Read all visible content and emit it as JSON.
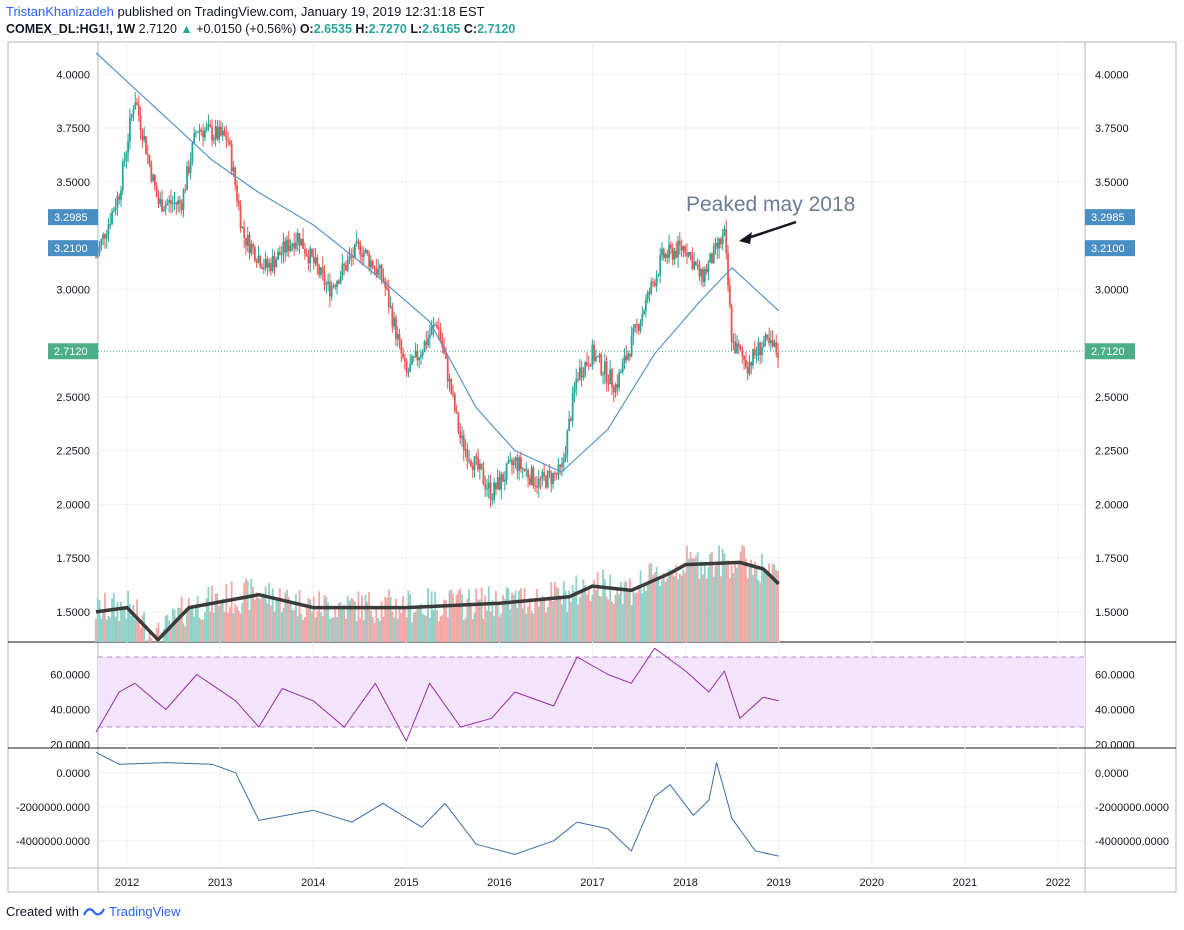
{
  "header": {
    "username": "TristanKhanizadeh",
    "published_text": "published on TradingView.com, January 19, 2019 12:31:18 EST",
    "symbol": "COMEX_DL:HG1!, 1W",
    "last_price": "2.7120",
    "change": "+0.0150 (+0.56%)",
    "open_label": "O:",
    "open": "2.6535",
    "high_label": "H:",
    "high": "2.7270",
    "low_label": "L:",
    "low": "2.6165",
    "close_label": "C:",
    "close": "2.7120"
  },
  "footer": {
    "created_with": "Created with",
    "brand": "TradingView"
  },
  "annotation": {
    "text": "Peaked may 2018"
  },
  "colors": {
    "up": "#26a69a",
    "down": "#ef5350",
    "ma": "#4a8fc4",
    "vol_up": "#8fd0c8",
    "vol_down": "#f4a7a4",
    "vol_ma": "#3b3b3b",
    "rsi": "#9c27b0",
    "rsi_band": "#f3e5fb",
    "flow": "#3a6ea8",
    "price_badge": "#4caf89",
    "level_badge": "#4a8fc4"
  },
  "chart_data": [
    {
      "type": "candlestick",
      "panel": "price",
      "series_label": "COMEX_DL:HG1!, 1W",
      "ylim": [
        1.36,
        4.15
      ],
      "y_ticks": [
        "4.0000",
        "3.7500",
        "3.5000",
        "3.0000",
        "2.5000",
        "2.2500",
        "2.0000",
        "1.7500",
        "1.5000"
      ],
      "x_ticks": [
        "2012",
        "2013",
        "2014",
        "2015",
        "2016",
        "2017",
        "2018",
        "2019",
        "2020",
        "2021",
        "2022"
      ],
      "price_markers": [
        "3.2985",
        "3.2100",
        "2.7120"
      ],
      "approx_weekly_close_path": [
        [
          "2011-09",
          3.15
        ],
        [
          "2011-12",
          3.45
        ],
        [
          "2012-02",
          3.9
        ],
        [
          "2012-05",
          3.4
        ],
        [
          "2012-08",
          3.4
        ],
        [
          "2012-10",
          3.75
        ],
        [
          "2013-02",
          3.7
        ],
        [
          "2013-04",
          3.25
        ],
        [
          "2013-07",
          3.1
        ],
        [
          "2013-11",
          3.25
        ],
        [
          "2014-03",
          3.0
        ],
        [
          "2014-07",
          3.2
        ],
        [
          "2014-10",
          3.05
        ],
        [
          "2015-01",
          2.6
        ],
        [
          "2015-05",
          2.85
        ],
        [
          "2015-08",
          2.3
        ],
        [
          "2015-12",
          2.05
        ],
        [
          "2016-03",
          2.2
        ],
        [
          "2016-06",
          2.1
        ],
        [
          "2016-09",
          2.15
        ],
        [
          "2016-11",
          2.6
        ],
        [
          "2017-01",
          2.7
        ],
        [
          "2017-04",
          2.55
        ],
        [
          "2017-08",
          2.95
        ],
        [
          "2017-10",
          3.15
        ],
        [
          "2018-01",
          3.2
        ],
        [
          "2018-03",
          3.05
        ],
        [
          "2018-06",
          3.25
        ],
        [
          "2018-07",
          2.75
        ],
        [
          "2018-09",
          2.65
        ],
        [
          "2018-11",
          2.75
        ],
        [
          "2019-01",
          2.71
        ]
      ],
      "moving_average": [
        [
          "2011-09",
          4.1
        ],
        [
          "2012-06",
          3.8
        ],
        [
          "2012-12",
          3.6
        ],
        [
          "2013-06",
          3.45
        ],
        [
          "2014-01",
          3.3
        ],
        [
          "2014-08",
          3.1
        ],
        [
          "2015-04",
          2.85
        ],
        [
          "2015-10",
          2.45
        ],
        [
          "2016-03",
          2.25
        ],
        [
          "2016-09",
          2.15
        ],
        [
          "2017-03",
          2.35
        ],
        [
          "2017-09",
          2.7
        ],
        [
          "2018-03",
          2.95
        ],
        [
          "2018-07",
          3.1
        ],
        [
          "2019-01",
          2.9
        ]
      ]
    },
    {
      "type": "bar",
      "panel": "volume",
      "note": "volume overlay in lower part of price panel, with thick moving-average line",
      "volume_ma": [
        [
          "2011-09",
          1.5
        ],
        [
          "2012-01",
          1.52
        ],
        [
          "2012-05",
          1.37
        ],
        [
          "2012-09",
          1.52
        ],
        [
          "2013-06",
          1.58
        ],
        [
          "2014-01",
          1.52
        ],
        [
          "2015-01",
          1.52
        ],
        [
          "2016-01",
          1.54
        ],
        [
          "2016-10",
          1.57
        ],
        [
          "2017-01",
          1.62
        ],
        [
          "2017-06",
          1.6
        ],
        [
          "2017-11",
          1.68
        ],
        [
          "2018-01",
          1.72
        ],
        [
          "2018-08",
          1.73
        ],
        [
          "2018-11",
          1.7
        ],
        [
          "2019-01",
          1.63
        ]
      ]
    },
    {
      "type": "line",
      "panel": "rsi",
      "ylim": [
        18,
        78
      ],
      "y_ticks": [
        "60.0000",
        "40.0000",
        "20.0000"
      ],
      "band": [
        30,
        70
      ],
      "values": [
        [
          "2011-09",
          27
        ],
        [
          "2011-12",
          50
        ],
        [
          "2012-02",
          55
        ],
        [
          "2012-06",
          40
        ],
        [
          "2012-10",
          60
        ],
        [
          "2013-03",
          45
        ],
        [
          "2013-06",
          30
        ],
        [
          "2013-09",
          52
        ],
        [
          "2014-01",
          45
        ],
        [
          "2014-05",
          30
        ],
        [
          "2014-09",
          55
        ],
        [
          "2015-01",
          22
        ],
        [
          "2015-04",
          55
        ],
        [
          "2015-08",
          30
        ],
        [
          "2015-12",
          35
        ],
        [
          "2016-03",
          50
        ],
        [
          "2016-08",
          42
        ],
        [
          "2016-11",
          70
        ],
        [
          "2017-03",
          60
        ],
        [
          "2017-06",
          55
        ],
        [
          "2017-09",
          75
        ],
        [
          "2018-01",
          62
        ],
        [
          "2018-04",
          50
        ],
        [
          "2018-06",
          62
        ],
        [
          "2018-08",
          35
        ],
        [
          "2018-11",
          47
        ],
        [
          "2019-01",
          45
        ]
      ]
    },
    {
      "type": "line",
      "panel": "flow",
      "ylim": [
        -5600000,
        1400000
      ],
      "y_ticks": [
        "0.0000",
        "-2000000.0000",
        "-4000000.0000"
      ],
      "values": [
        [
          "2011-09",
          1200000
        ],
        [
          "2011-12",
          500000
        ],
        [
          "2012-06",
          600000
        ],
        [
          "2012-12",
          500000
        ],
        [
          "2013-03",
          0
        ],
        [
          "2013-06",
          -2800000
        ],
        [
          "2014-01",
          -2200000
        ],
        [
          "2014-06",
          -2900000
        ],
        [
          "2014-10",
          -1800000
        ],
        [
          "2015-03",
          -3200000
        ],
        [
          "2015-06",
          -1800000
        ],
        [
          "2015-10",
          -4200000
        ],
        [
          "2016-03",
          -4800000
        ],
        [
          "2016-08",
          -4000000
        ],
        [
          "2016-11",
          -2900000
        ],
        [
          "2017-03",
          -3300000
        ],
        [
          "2017-06",
          -4600000
        ],
        [
          "2017-09",
          -1400000
        ],
        [
          "2017-11",
          -700000
        ],
        [
          "2018-02",
          -2500000
        ],
        [
          "2018-04",
          -1600000
        ],
        [
          "2018-05",
          600000
        ],
        [
          "2018-07",
          -2700000
        ],
        [
          "2018-10",
          -4600000
        ],
        [
          "2019-01",
          -4900000
        ]
      ]
    }
  ]
}
